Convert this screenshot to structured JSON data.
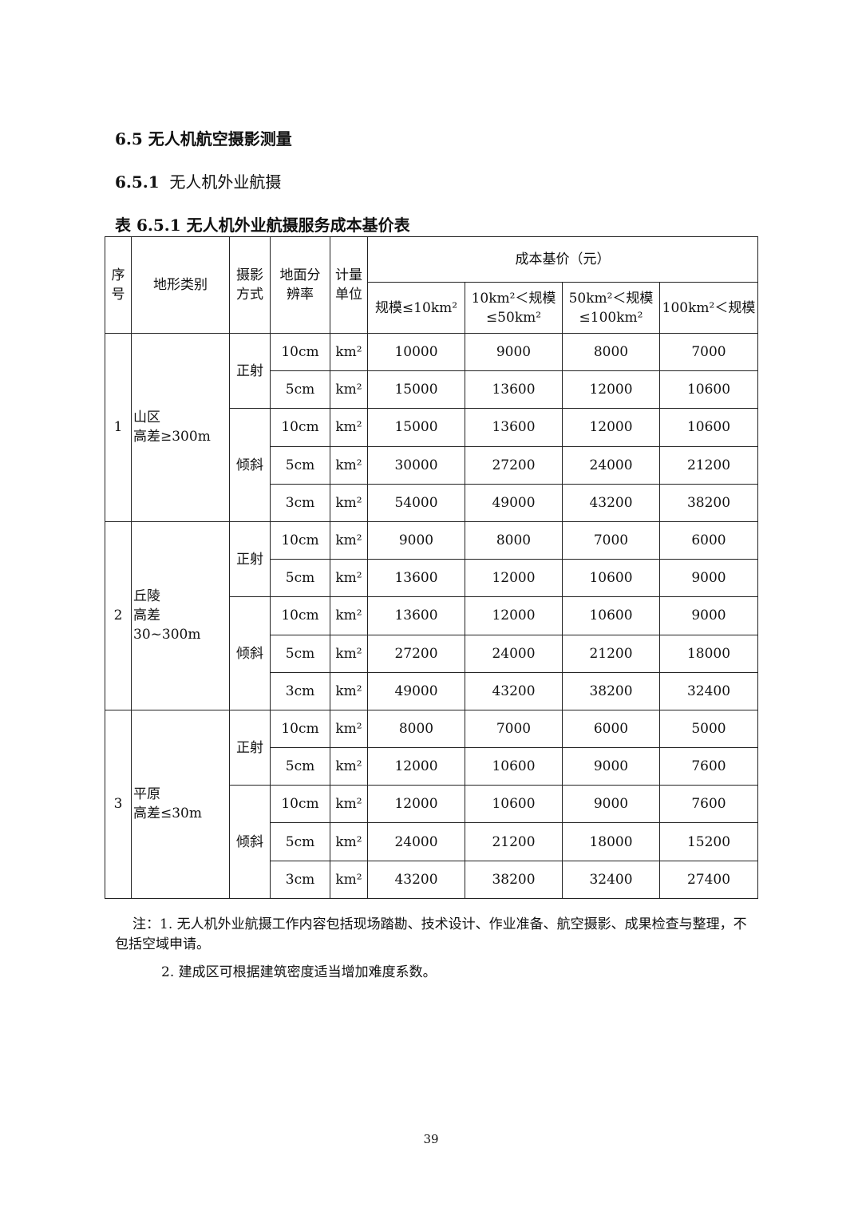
{
  "section_title": "6.5  无人机航空摄影测量",
  "subsection": {
    "number": "6.5.1",
    "title": "无人机外业航摄"
  },
  "table_caption": "表 6.5.1    无人机外业航摄服务成本基价表",
  "table": {
    "headers": {
      "no": "序号",
      "terrain": "地形类别",
      "mode": "摄影方式",
      "resolution": "地面分辨率",
      "unit": "计量单位",
      "price_group": "成本基价（元）",
      "scales": [
        "规模≤10km²",
        "10km²＜规模≤50km²",
        "50km²＜规模≤100km²",
        "100km²＜规模"
      ]
    },
    "groups": [
      {
        "no": "1",
        "terrain": "山区",
        "elevation": "高差≥300m",
        "modes": [
          {
            "mode": "正射",
            "rows": [
              {
                "res": "10cm",
                "unit": "km²",
                "prices": [
                  "10000",
                  "9000",
                  "8000",
                  "7000"
                ]
              },
              {
                "res": "5cm",
                "unit": "km²",
                "prices": [
                  "15000",
                  "13600",
                  "12000",
                  "10600"
                ]
              }
            ]
          },
          {
            "mode": "倾斜",
            "rows": [
              {
                "res": "10cm",
                "unit": "km²",
                "prices": [
                  "15000",
                  "13600",
                  "12000",
                  "10600"
                ]
              },
              {
                "res": "5cm",
                "unit": "km²",
                "prices": [
                  "30000",
                  "27200",
                  "24000",
                  "21200"
                ]
              },
              {
                "res": "3cm",
                "unit": "km²",
                "prices": [
                  "54000",
                  "49000",
                  "43200",
                  "38200"
                ]
              }
            ]
          }
        ]
      },
      {
        "no": "2",
        "terrain": "丘陵",
        "elevation": "高差 30~300m",
        "modes": [
          {
            "mode": "正射",
            "rows": [
              {
                "res": "10cm",
                "unit": "km²",
                "prices": [
                  "9000",
                  "8000",
                  "7000",
                  "6000"
                ]
              },
              {
                "res": "5cm",
                "unit": "km²",
                "prices": [
                  "13600",
                  "12000",
                  "10600",
                  "9000"
                ]
              }
            ]
          },
          {
            "mode": "倾斜",
            "rows": [
              {
                "res": "10cm",
                "unit": "km²",
                "prices": [
                  "13600",
                  "12000",
                  "10600",
                  "9000"
                ]
              },
              {
                "res": "5cm",
                "unit": "km²",
                "prices": [
                  "27200",
                  "24000",
                  "21200",
                  "18000"
                ]
              },
              {
                "res": "3cm",
                "unit": "km²",
                "prices": [
                  "49000",
                  "43200",
                  "38200",
                  "32400"
                ]
              }
            ]
          }
        ]
      },
      {
        "no": "3",
        "terrain": "平原",
        "elevation": "高差≤30m",
        "modes": [
          {
            "mode": "正射",
            "rows": [
              {
                "res": "10cm",
                "unit": "km²",
                "prices": [
                  "8000",
                  "7000",
                  "6000",
                  "5000"
                ]
              },
              {
                "res": "5cm",
                "unit": "km²",
                "prices": [
                  "12000",
                  "10600",
                  "9000",
                  "7600"
                ]
              }
            ]
          },
          {
            "mode": "倾斜",
            "rows": [
              {
                "res": "10cm",
                "unit": "km²",
                "prices": [
                  "12000",
                  "10600",
                  "9000",
                  "7600"
                ]
              },
              {
                "res": "5cm",
                "unit": "km²",
                "prices": [
                  "24000",
                  "21200",
                  "18000",
                  "15200"
                ]
              },
              {
                "res": "3cm",
                "unit": "km²",
                "prices": [
                  "43200",
                  "38200",
                  "32400",
                  "27400"
                ]
              }
            ]
          }
        ]
      }
    ]
  },
  "notes": [
    "注：1. 无人机外业航摄工作内容包括现场踏勘、技术设计、作业准备、航空摄影、成果检查与整理，不包括空域申请。",
    "2. 建成区可根据建筑密度适当增加难度系数。"
  ],
  "page_number": "39"
}
